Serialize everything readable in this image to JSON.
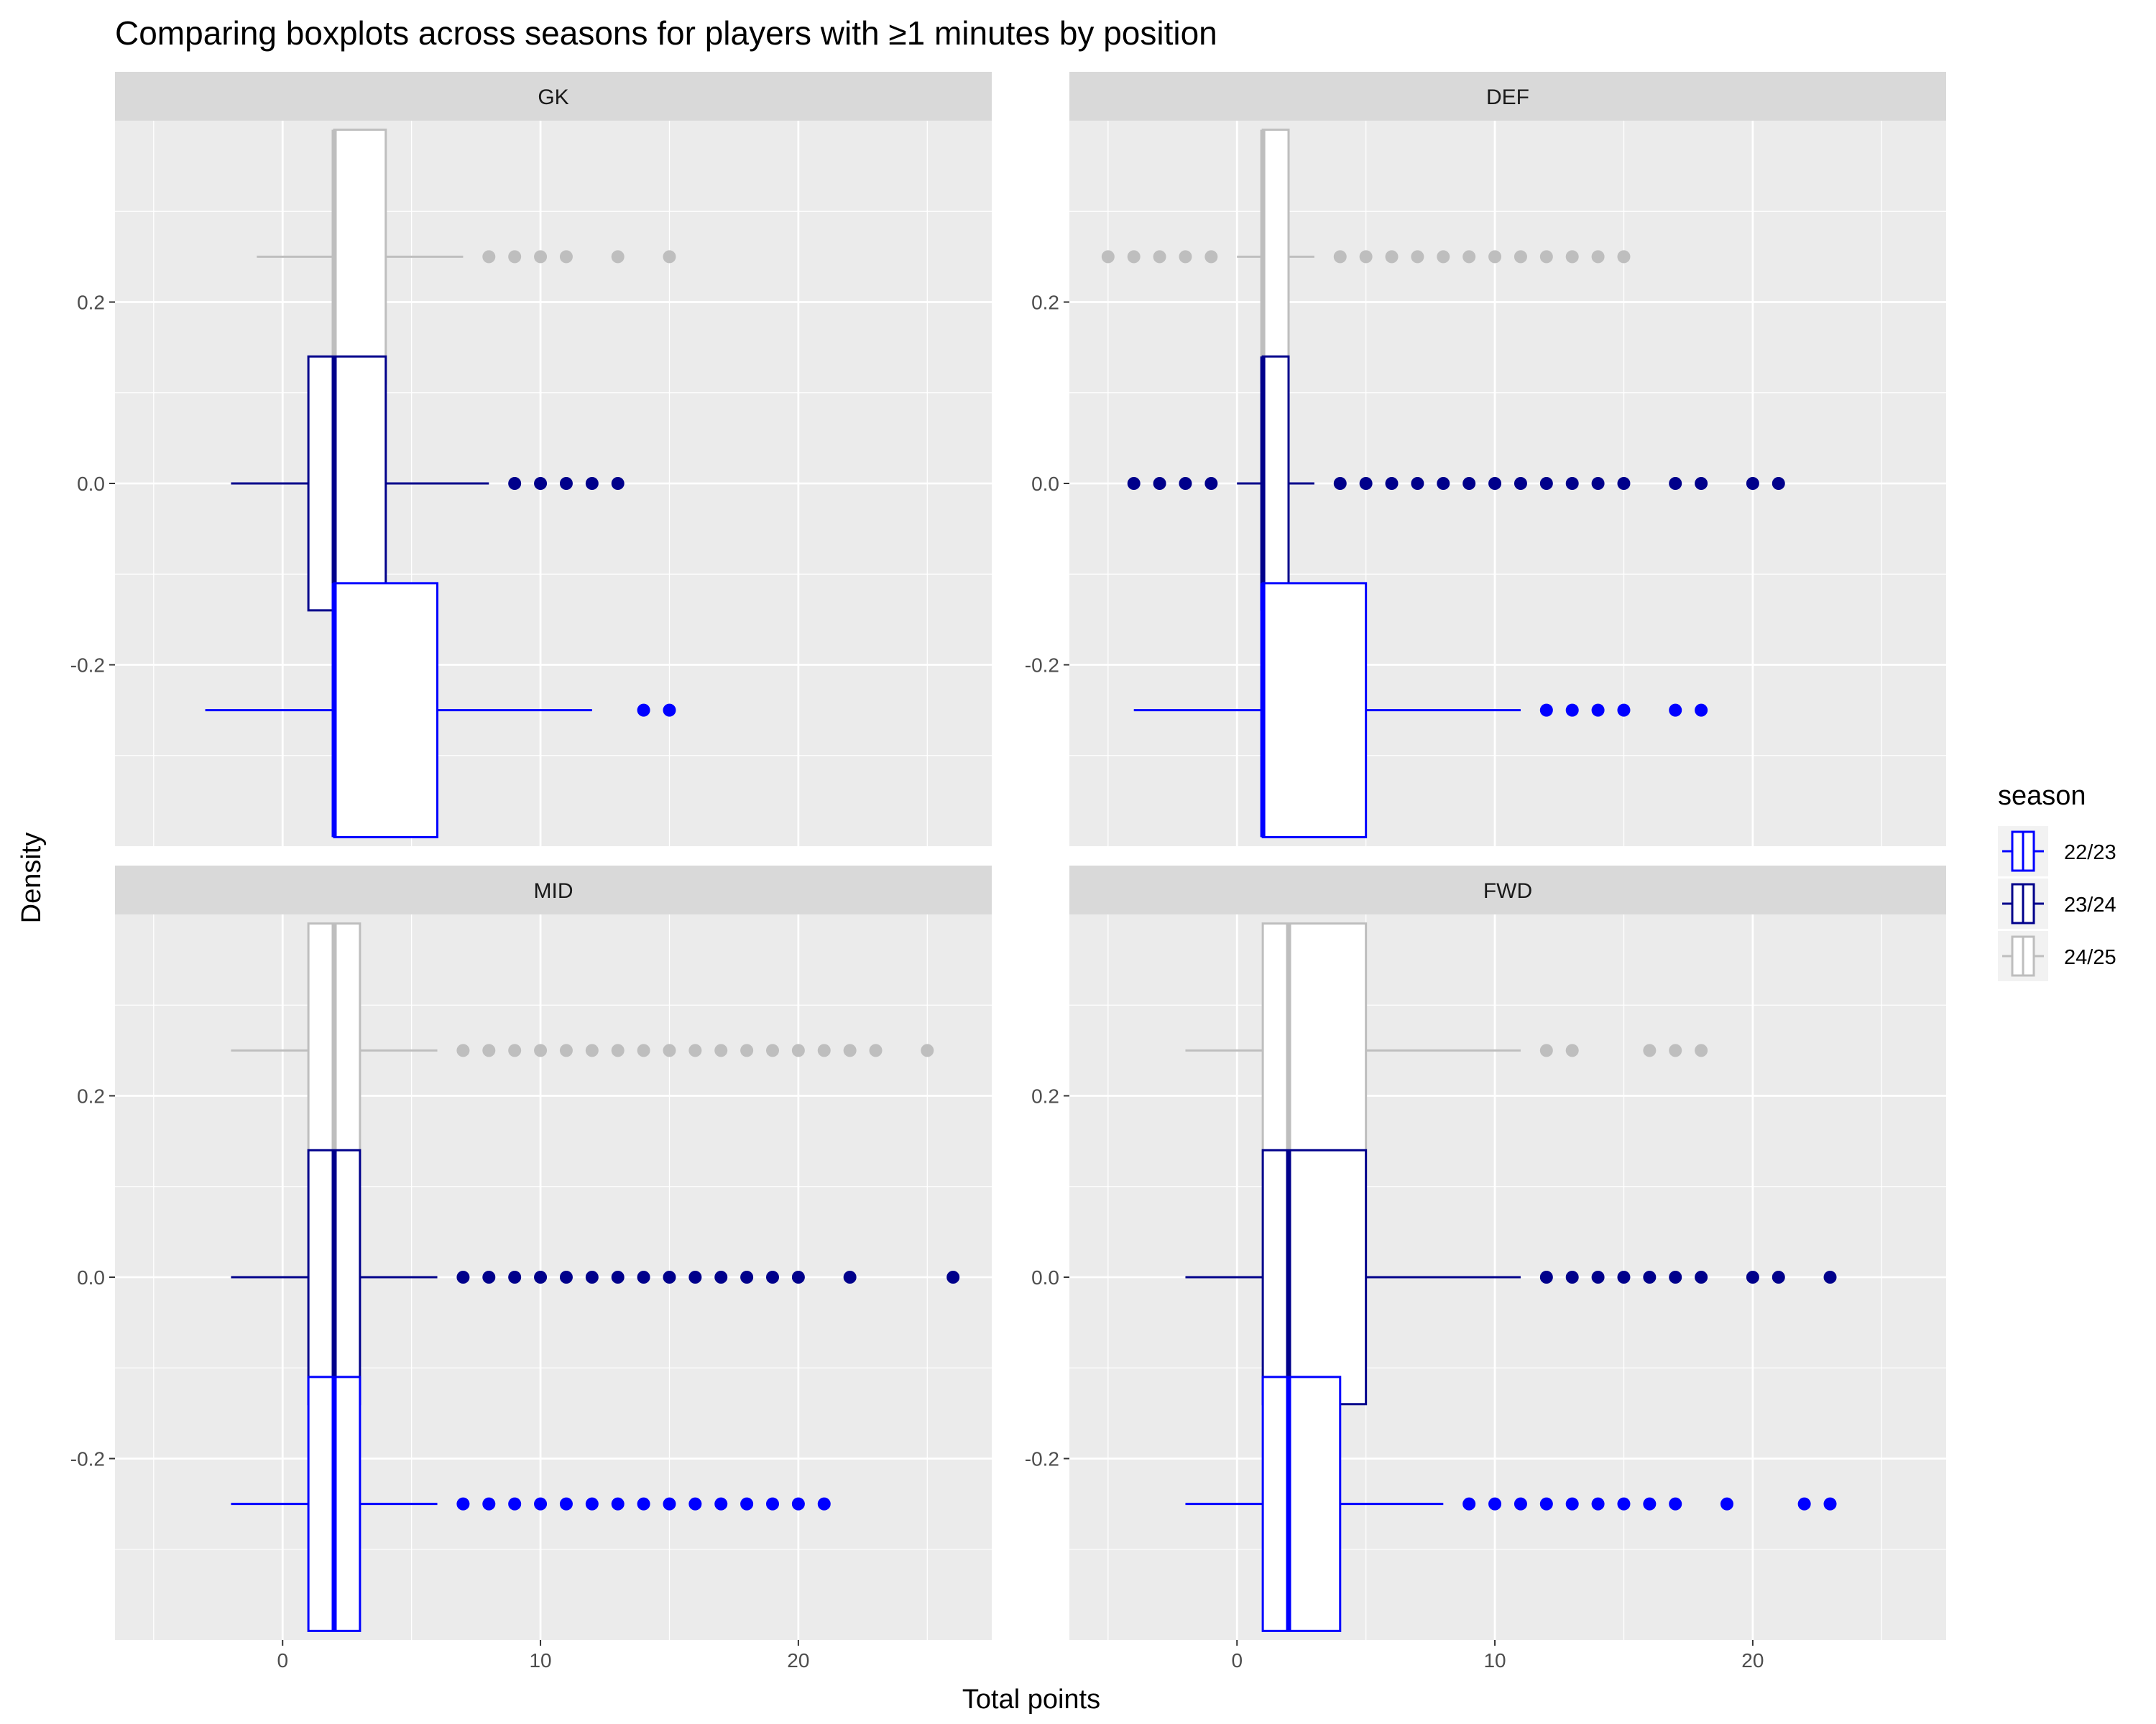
{
  "chart_data": {
    "type": "boxplot",
    "title": "Comparing boxplots across seasons for players with ≥1 minutes by position",
    "xlabel": "Total points",
    "ylabel": "Density",
    "xlim": [
      -6.5,
      27.5
    ],
    "ylim": [
      -0.4,
      0.4
    ],
    "x_ticks": [
      0,
      10,
      20
    ],
    "y_ticks": [
      -0.2,
      0.0,
      0.2
    ],
    "y_tick_labels": [
      "-0.2",
      "0.0",
      "0.2"
    ],
    "grid": true,
    "legend": {
      "title": "season",
      "position": "right",
      "entries": [
        {
          "label": "22/23",
          "color": "#0000FF"
        },
        {
          "label": "23/24",
          "color": "#00008B"
        },
        {
          "label": "24/25",
          "color": "#BEBEBE"
        }
      ]
    },
    "panels": [
      {
        "facet": "GK",
        "boxes": [
          {
            "season": "24/25",
            "y": 0.25,
            "whisker_low": -1,
            "q1": 2,
            "median": 2,
            "q3": 4,
            "whisker_high": 7,
            "outliers": [
              8,
              9,
              10,
              11,
              13,
              15
            ]
          },
          {
            "season": "23/24",
            "y": 0.0,
            "whisker_low": -2,
            "q1": 1,
            "median": 2,
            "q3": 4,
            "whisker_high": 8,
            "outliers": [
              9,
              10,
              11,
              12,
              13
            ]
          },
          {
            "season": "22/23",
            "y": -0.25,
            "whisker_low": -3,
            "q1": 2,
            "median": 2,
            "q3": 6,
            "whisker_high": 12,
            "outliers": [
              14,
              15
            ]
          }
        ]
      },
      {
        "facet": "DEF",
        "boxes": [
          {
            "season": "24/25",
            "y": 0.25,
            "whisker_low": 0,
            "q1": 1,
            "median": 1,
            "q3": 2,
            "whisker_high": 3,
            "outliers": [
              -5,
              -4,
              -3,
              -2,
              -1,
              4,
              5,
              6,
              7,
              8,
              9,
              10,
              11,
              12,
              13,
              14,
              15
            ]
          },
          {
            "season": "23/24",
            "y": 0.0,
            "whisker_low": 0,
            "q1": 1,
            "median": 1,
            "q3": 2,
            "whisker_high": 3,
            "outliers": [
              -4,
              -3,
              -2,
              -1,
              4,
              5,
              6,
              7,
              8,
              9,
              10,
              11,
              12,
              13,
              14,
              15,
              17,
              18,
              20,
              21
            ]
          },
          {
            "season": "22/23",
            "y": -0.25,
            "whisker_low": -4,
            "q1": 1,
            "median": 1,
            "q3": 5,
            "whisker_high": 11,
            "outliers": [
              12,
              13,
              14,
              15,
              17,
              18
            ]
          }
        ]
      },
      {
        "facet": "MID",
        "boxes": [
          {
            "season": "24/25",
            "y": 0.25,
            "whisker_low": -2,
            "q1": 1,
            "median": 2,
            "q3": 3,
            "whisker_high": 6,
            "outliers": [
              7,
              8,
              9,
              10,
              11,
              12,
              13,
              14,
              15,
              16,
              17,
              18,
              19,
              20,
              21,
              22,
              23,
              25
            ]
          },
          {
            "season": "23/24",
            "y": 0.0,
            "whisker_low": -2,
            "q1": 1,
            "median": 2,
            "q3": 3,
            "whisker_high": 6,
            "outliers": [
              7,
              8,
              9,
              10,
              11,
              12,
              13,
              14,
              15,
              16,
              17,
              18,
              19,
              20,
              22,
              26
            ]
          },
          {
            "season": "22/23",
            "y": -0.25,
            "whisker_low": -2,
            "q1": 1,
            "median": 2,
            "q3": 3,
            "whisker_high": 6,
            "outliers": [
              7,
              8,
              9,
              10,
              11,
              12,
              13,
              14,
              15,
              16,
              17,
              18,
              19,
              20,
              21
            ]
          }
        ]
      },
      {
        "facet": "FWD",
        "boxes": [
          {
            "season": "24/25",
            "y": 0.25,
            "whisker_low": -2,
            "q1": 1,
            "median": 2,
            "q3": 5,
            "whisker_high": 11,
            "outliers": [
              12,
              13,
              16,
              17,
              18
            ]
          },
          {
            "season": "23/24",
            "y": 0.0,
            "whisker_low": -2,
            "q1": 1,
            "median": 2,
            "q3": 5,
            "whisker_high": 11,
            "outliers": [
              12,
              13,
              14,
              15,
              16,
              17,
              18,
              20,
              21,
              23
            ]
          },
          {
            "season": "22/23",
            "y": -0.25,
            "whisker_low": -2,
            "q1": 1,
            "median": 2,
            "q3": 4,
            "whisker_high": 8,
            "outliers": [
              9,
              10,
              11,
              12,
              13,
              14,
              15,
              16,
              17,
              19,
              22,
              23
            ]
          }
        ]
      }
    ]
  }
}
